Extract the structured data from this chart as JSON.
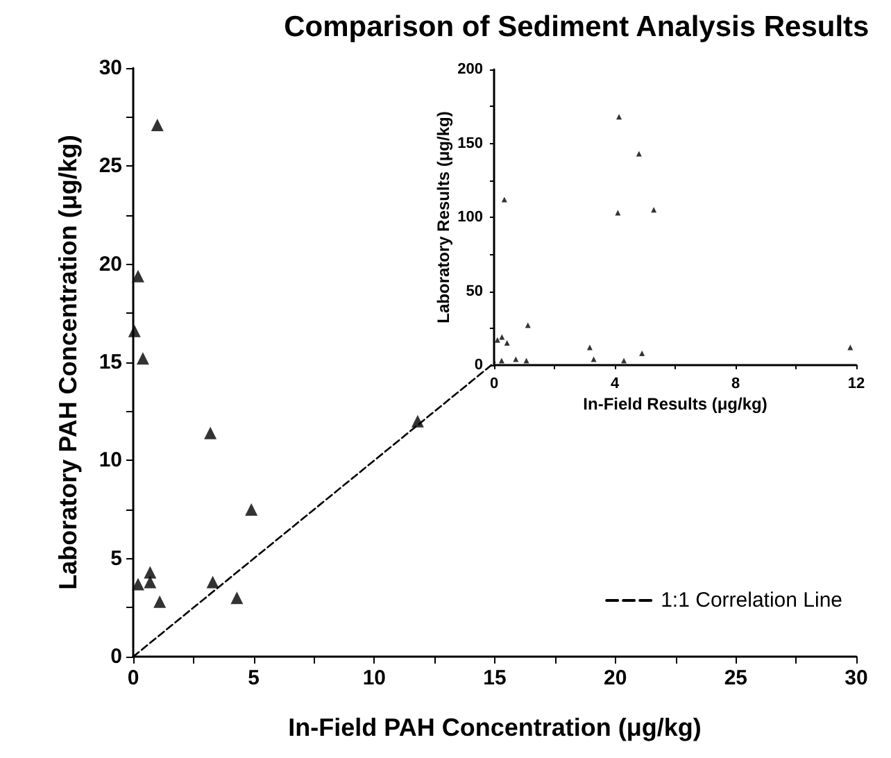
{
  "chart_data": [
    {
      "type": "scatter",
      "title": "Comparison of Sediment Analysis Results",
      "xlabel": "In-Field PAH Concentration (μg/kg)",
      "ylabel": "Laboratory PAH Concentration (μg/kg)",
      "x": [
        0.05,
        0.2,
        0.4,
        1.0,
        0.2,
        0.7,
        0.7,
        1.1,
        3.2,
        3.3,
        4.3,
        4.9,
        11.8
      ],
      "series": [
        {
          "color": "#000000",
          "marker": "triangle",
          "values": [
            16.6,
            19.4,
            15.2,
            27.1,
            3.7,
            4.3,
            3.8,
            2.8,
            11.4,
            3.8,
            3.0,
            7.5,
            12.0
          ]
        },
        {
          "type": "line",
          "name": "1:1 Correlation Line",
          "color": "#000000",
          "line_style": "dashed",
          "marker": "none",
          "x": [
            0,
            15
          ],
          "values": [
            0,
            15
          ]
        }
      ],
      "xlim": [
        0,
        30
      ],
      "ylim": [
        0,
        30
      ],
      "xticks": [
        0,
        {
          "value": 2.5,
          "label": null
        },
        5,
        {
          "value": 7.5,
          "label": null
        },
        10,
        {
          "value": 12.5,
          "label": null
        },
        15,
        {
          "value": 17.5,
          "label": null
        },
        20,
        {
          "value": 22.5,
          "label": null
        },
        25,
        {
          "value": 27.5,
          "label": null
        },
        30
      ],
      "yticks": [
        0,
        {
          "value": 2.5,
          "label": null
        },
        5,
        {
          "value": 7.5,
          "label": null
        },
        10,
        {
          "value": 12.5,
          "label": null
        },
        15,
        {
          "value": 17.5,
          "label": null
        },
        20,
        {
          "value": 22.5,
          "label": null
        },
        25,
        {
          "value": 27.5,
          "label": null
        },
        30
      ],
      "grid": false,
      "legend": "bottom right"
    },
    {
      "type": "scatter",
      "xlabel": "In-Field Results (μg/kg)",
      "ylabel": "Laboratory Results (μg/kg)",
      "x": [
        0.11,
        0.26,
        0.25,
        0.34,
        0.43,
        0.72,
        1.07,
        1.12,
        3.17,
        3.3,
        4.14,
        4.1,
        4.3,
        4.8,
        4.9,
        5.29,
        11.8
      ],
      "series": [
        {
          "color": "#000000",
          "marker": "triangle",
          "values": [
            17,
            19,
            3,
            112,
            15,
            4,
            3,
            27,
            12,
            4,
            168,
            103,
            3,
            143,
            8,
            105,
            12
          ]
        }
      ],
      "xlim": [
        0,
        12
      ],
      "ylim": [
        0,
        200
      ],
      "xticks": [
        0,
        {
          "value": 2,
          "label": null
        },
        4,
        {
          "value": 6,
          "label": null
        },
        8,
        {
          "value": 10,
          "label": null
        },
        12
      ],
      "yticks": [
        0,
        {
          "value": 25,
          "label": null
        },
        50,
        {
          "value": 75,
          "label": null
        },
        100,
        {
          "value": 125,
          "label": null
        },
        150,
        {
          "value": 175,
          "label": null
        },
        200
      ],
      "grid": false,
      "legend": false
    }
  ]
}
